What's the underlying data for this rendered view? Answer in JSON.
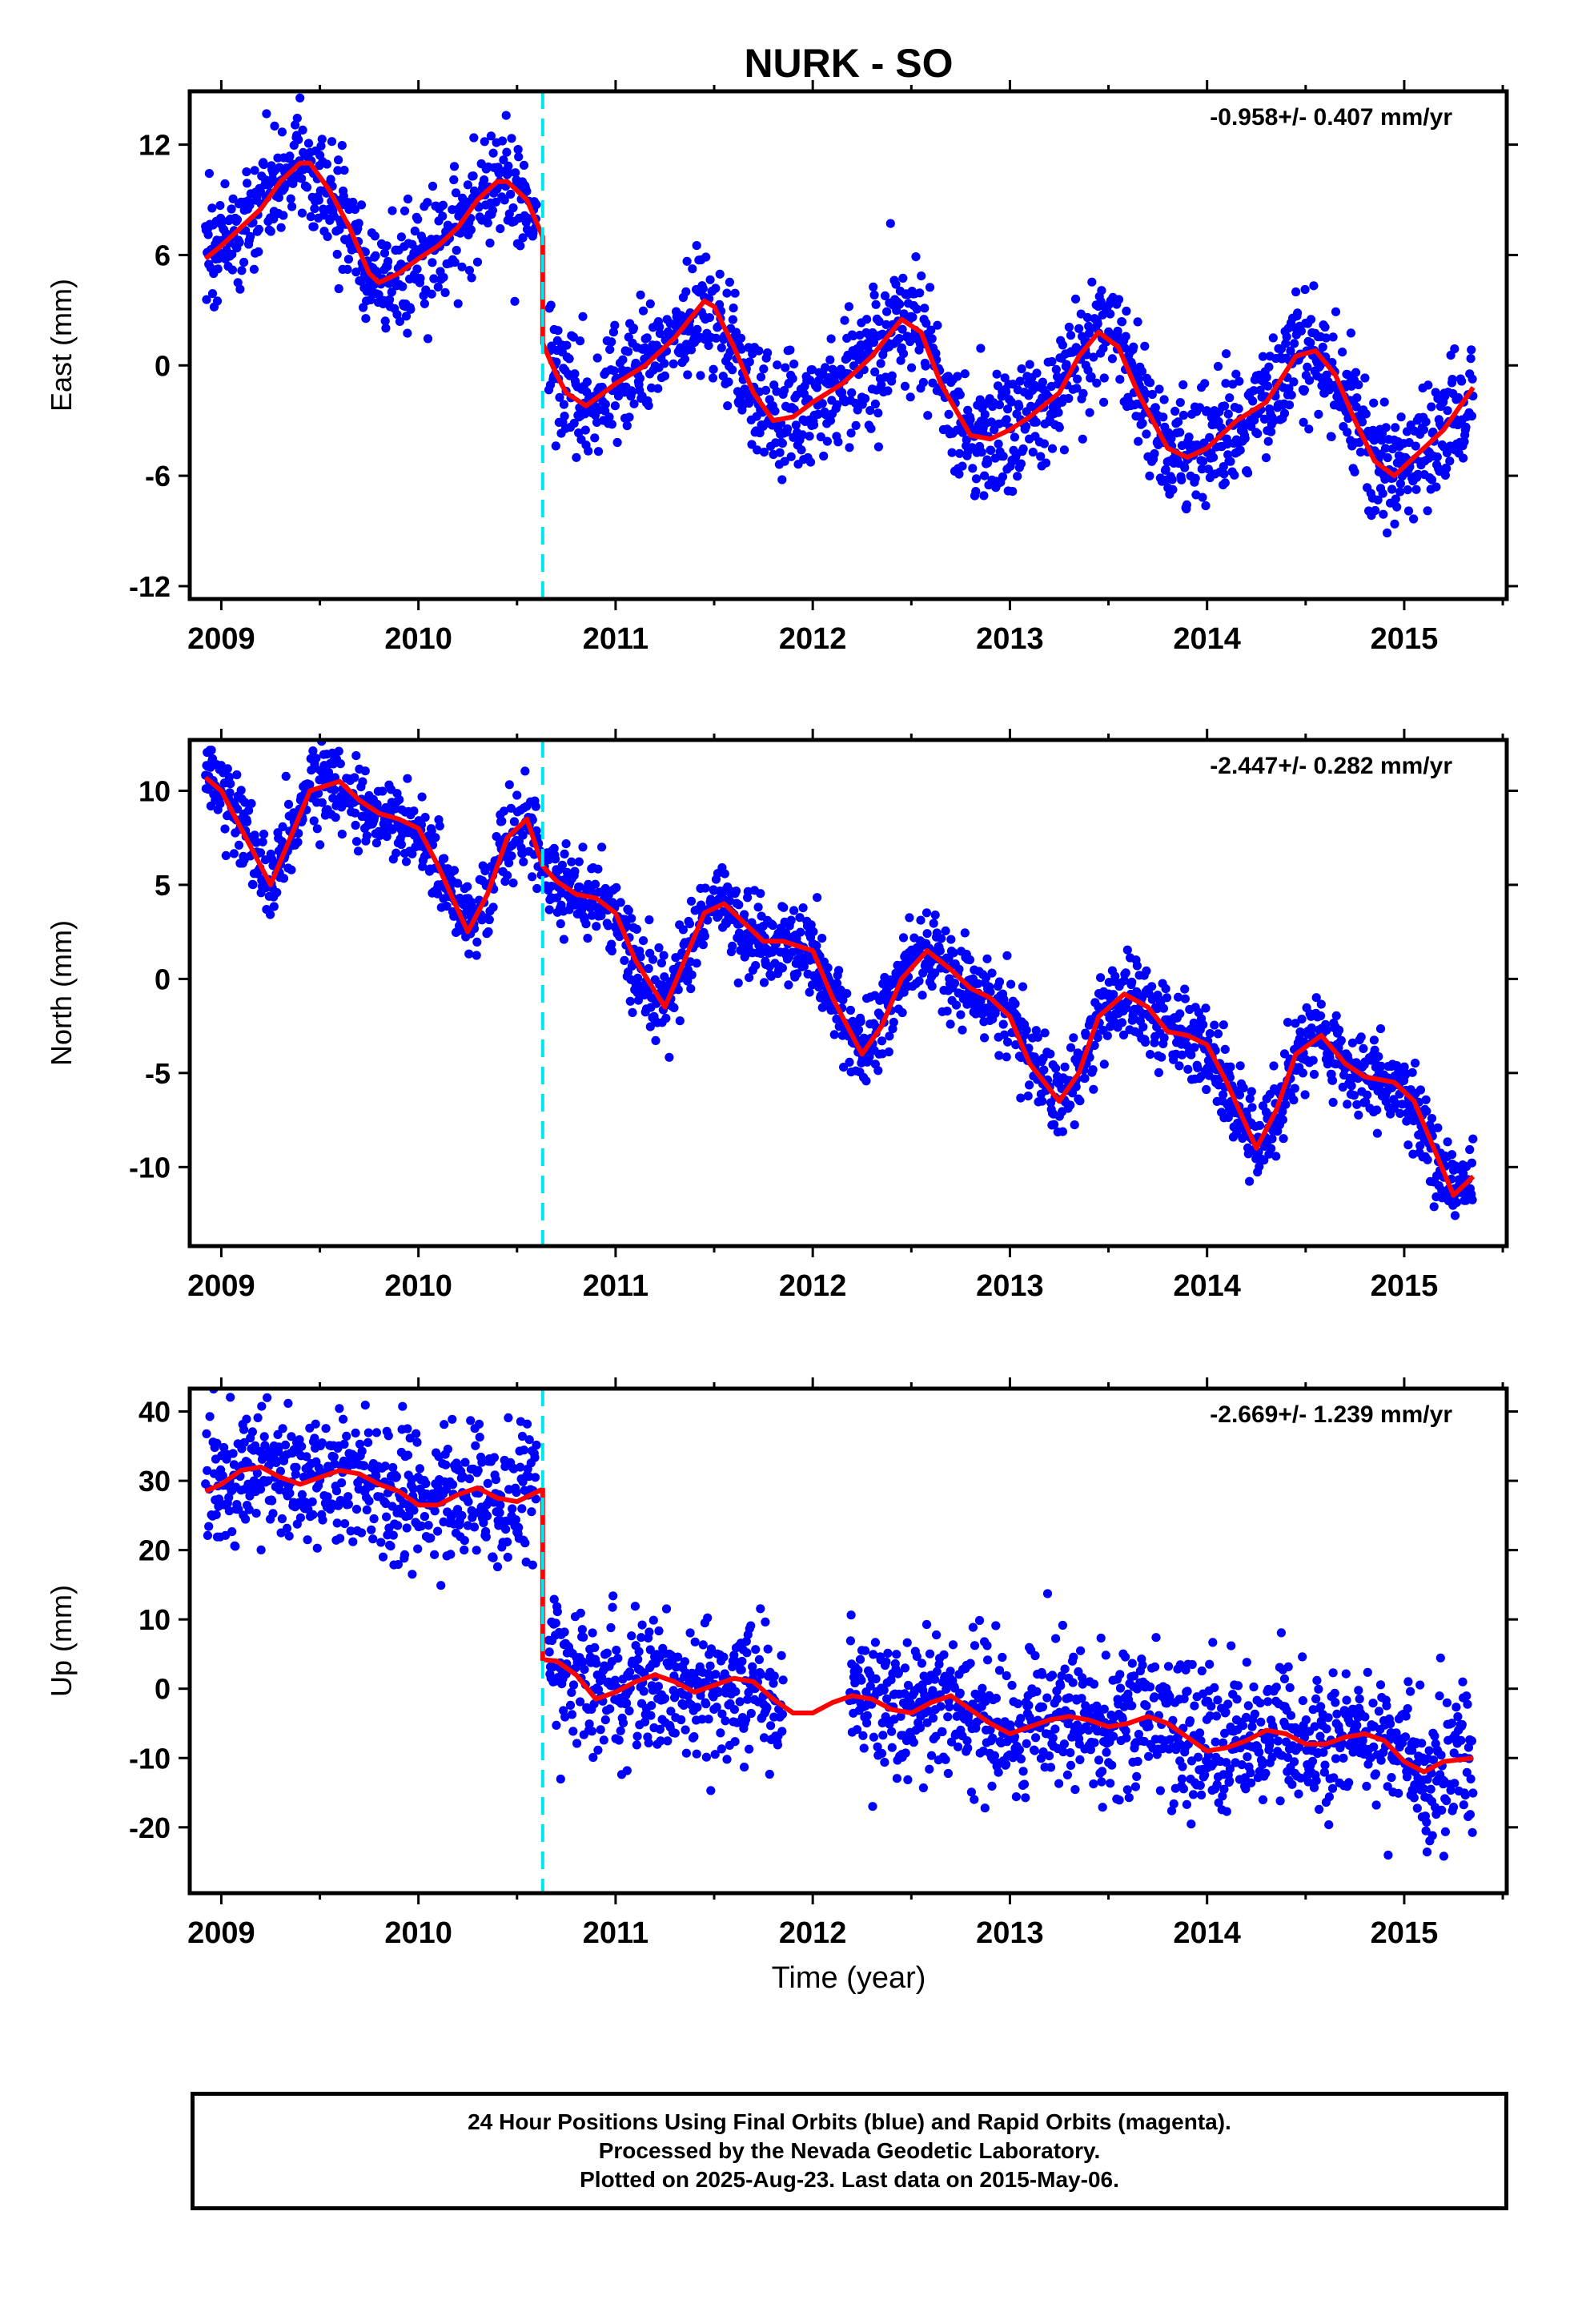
{
  "title": "NURK - SO",
  "x_axis_label": "Time (year)",
  "colors": {
    "points": "#0000ff",
    "fit": "#ff0000",
    "offset_line": "#00e5ee",
    "frame": "#000000"
  },
  "chart_data": [
    {
      "type": "scatter",
      "panel": "east",
      "ylabel": "East (mm)",
      "rate_annotation": "-0.958+/- 0.407 mm/yr",
      "xlim": [
        2008.84,
        2015.52
      ],
      "ylim": [
        -12.7,
        14.9
      ],
      "x_ticks": [
        "2009",
        "2010",
        "2011",
        "2012",
        "2013",
        "2014",
        "2015"
      ],
      "y_ticks": [
        "-12",
        "-6",
        "0",
        "6",
        "12"
      ],
      "y_tick_values": [
        -12,
        -6,
        0,
        6,
        12
      ],
      "offset_epoch": 2010.63,
      "data_range": [
        2008.92,
        2015.35
      ],
      "scatter_sigma": 1.6,
      "fit_series": {
        "name": "model",
        "x": [
          2008.92,
          2009.0,
          2009.1,
          2009.2,
          2009.3,
          2009.4,
          2009.45,
          2009.55,
          2009.65,
          2009.75,
          2009.8,
          2009.9,
          2010.0,
          2010.1,
          2010.2,
          2010.3,
          2010.4,
          2010.45,
          2010.55,
          2010.63,
          2010.63,
          2010.7,
          2010.75,
          2010.85,
          2011.0,
          2011.15,
          2011.3,
          2011.45,
          2011.5,
          2011.6,
          2011.7,
          2011.8,
          2011.9,
          2012.0,
          2012.15,
          2012.3,
          2012.45,
          2012.55,
          2012.65,
          2012.8,
          2012.9,
          2013.0,
          2013.1,
          2013.25,
          2013.35,
          2013.45,
          2013.55,
          2013.65,
          2013.8,
          2013.9,
          2014.0,
          2014.15,
          2014.3,
          2014.45,
          2014.55,
          2014.65,
          2014.75,
          2014.85,
          2014.95,
          2015.05,
          2015.2,
          2015.35
        ],
        "y": [
          5.8,
          6.5,
          7.5,
          8.5,
          10.0,
          11.0,
          11.0,
          9.5,
          7.5,
          5.0,
          4.5,
          5.0,
          5.8,
          6.5,
          7.5,
          9.0,
          10.0,
          10.0,
          9.0,
          7.0,
          1.2,
          -0.5,
          -1.5,
          -2.2,
          -1.0,
          0.0,
          1.5,
          3.5,
          3.2,
          1.0,
          -1.5,
          -3.0,
          -2.8,
          -2.0,
          -1.0,
          0.5,
          2.5,
          1.8,
          -1.0,
          -3.8,
          -4.0,
          -3.5,
          -2.8,
          -1.5,
          0.5,
          1.8,
          1.0,
          -1.5,
          -4.5,
          -5.0,
          -4.5,
          -3.0,
          -2.0,
          0.5,
          0.8,
          -0.5,
          -3.0,
          -5.2,
          -6.0,
          -5.0,
          -3.5,
          -1.2
        ]
      }
    },
    {
      "type": "scatter",
      "panel": "north",
      "ylabel": "North (mm)",
      "rate_annotation": "-2.447+/- 0.282 mm/yr",
      "xlim": [
        2008.84,
        2015.52
      ],
      "ylim": [
        -14.2,
        12.7
      ],
      "x_ticks": [
        "2009",
        "2010",
        "2011",
        "2012",
        "2013",
        "2014",
        "2015"
      ],
      "y_ticks": [
        "-10",
        "-5",
        "0",
        "5",
        "10"
      ],
      "y_tick_values": [
        -10,
        -5,
        0,
        5,
        10
      ],
      "offset_epoch": 2010.63,
      "data_range": [
        2008.92,
        2015.35
      ],
      "scatter_sigma": 1.1,
      "fit_series": {
        "name": "model",
        "x": [
          2008.92,
          2009.0,
          2009.1,
          2009.25,
          2009.35,
          2009.45,
          2009.6,
          2009.7,
          2009.8,
          2009.9,
          2010.0,
          2010.1,
          2010.25,
          2010.35,
          2010.45,
          2010.55,
          2010.63,
          2010.7,
          2010.8,
          2010.9,
          2011.0,
          2011.1,
          2011.25,
          2011.35,
          2011.45,
          2011.55,
          2011.65,
          2011.75,
          2011.85,
          2012.0,
          2012.1,
          2012.25,
          2012.35,
          2012.45,
          2012.58,
          2012.7,
          2012.8,
          2012.9,
          2013.0,
          2013.1,
          2013.25,
          2013.35,
          2013.45,
          2013.58,
          2013.7,
          2013.8,
          2013.9,
          2014.0,
          2014.1,
          2014.25,
          2014.35,
          2014.45,
          2014.58,
          2014.7,
          2014.8,
          2014.95,
          2015.05,
          2015.15,
          2015.25,
          2015.35
        ],
        "y": [
          10.7,
          10.0,
          8.0,
          5.0,
          7.5,
          10.0,
          10.5,
          9.5,
          8.8,
          8.5,
          8.0,
          6.0,
          2.5,
          4.5,
          7.5,
          8.5,
          6.0,
          5.2,
          4.5,
          4.3,
          3.5,
          1.0,
          -1.5,
          1.0,
          3.5,
          4.0,
          3.0,
          2.0,
          2.0,
          1.5,
          -1.0,
          -4.0,
          -2.5,
          0.0,
          1.5,
          0.5,
          -0.5,
          -1.0,
          -2.0,
          -4.5,
          -6.5,
          -5.0,
          -2.0,
          -0.8,
          -1.5,
          -2.8,
          -3.0,
          -3.5,
          -5.5,
          -9.0,
          -7.0,
          -4.0,
          -3.0,
          -4.5,
          -5.2,
          -5.5,
          -6.5,
          -9.0,
          -11.5,
          -10.5
        ]
      }
    },
    {
      "type": "scatter",
      "panel": "up",
      "ylabel": "Up (mm)",
      "rate_annotation": "-2.669+/- 1.239 mm/yr",
      "xlim": [
        2008.84,
        2015.52
      ],
      "ylim": [
        -29.5,
        43.3
      ],
      "x_ticks": [
        "2009",
        "2010",
        "2011",
        "2012",
        "2013",
        "2014",
        "2015"
      ],
      "y_ticks": [
        "-20",
        "-10",
        "0",
        "10",
        "20",
        "30",
        "40"
      ],
      "y_tick_values": [
        -20,
        -10,
        0,
        10,
        20,
        30,
        40
      ],
      "offset_epoch": 2010.63,
      "data_range": [
        2008.92,
        2015.35
      ],
      "scatter_sigma": 5.0,
      "gap": [
        2011.85,
        2012.18
      ],
      "fit_series": {
        "name": "model",
        "x": [
          2008.92,
          2009.0,
          2009.1,
          2009.2,
          2009.3,
          2009.4,
          2009.5,
          2009.6,
          2009.7,
          2009.8,
          2009.9,
          2010.0,
          2010.1,
          2010.2,
          2010.3,
          2010.4,
          2010.5,
          2010.63,
          2010.63,
          2010.7,
          2010.8,
          2010.9,
          2011.0,
          2011.1,
          2011.2,
          2011.3,
          2011.4,
          2011.5,
          2011.6,
          2011.7,
          2011.8,
          2011.9,
          2012.0,
          2012.1,
          2012.2,
          2012.3,
          2012.4,
          2012.5,
          2012.6,
          2012.7,
          2012.8,
          2012.9,
          2013.0,
          2013.1,
          2013.2,
          2013.3,
          2013.4,
          2013.5,
          2013.6,
          2013.7,
          2013.8,
          2013.9,
          2014.0,
          2014.1,
          2014.2,
          2014.3,
          2014.4,
          2014.5,
          2014.6,
          2014.7,
          2014.8,
          2014.9,
          2015.0,
          2015.1,
          2015.2,
          2015.35
        ],
        "y": [
          28.5,
          29.5,
          31.5,
          32.0,
          30.5,
          29.5,
          30.5,
          31.5,
          31.0,
          29.5,
          28.5,
          26.5,
          26.5,
          28.0,
          29.0,
          27.5,
          27.0,
          28.8,
          4.2,
          4.0,
          2.0,
          -1.5,
          -0.5,
          1.0,
          2.0,
          1.0,
          -0.5,
          0.5,
          1.5,
          1.0,
          -1.5,
          -3.5,
          -3.5,
          -2.0,
          -1.0,
          -1.5,
          -3.0,
          -3.5,
          -2.0,
          -1.0,
          -3.0,
          -5.0,
          -6.5,
          -5.5,
          -4.5,
          -4.0,
          -4.5,
          -5.5,
          -5.0,
          -4.0,
          -5.0,
          -7.0,
          -9.0,
          -8.5,
          -7.5,
          -6.0,
          -6.5,
          -8.0,
          -8.0,
          -7.0,
          -6.5,
          -7.5,
          -10.5,
          -12.0,
          -10.5,
          -10.0
        ]
      }
    }
  ],
  "footer": {
    "line1": "24 Hour Positions Using Final Orbits (blue) and Rapid Orbits (magenta).",
    "line2": "Processed by the Nevada Geodetic Laboratory.",
    "line3": "Plotted on 2025-Aug-23. Last data on 2015-May-06."
  }
}
